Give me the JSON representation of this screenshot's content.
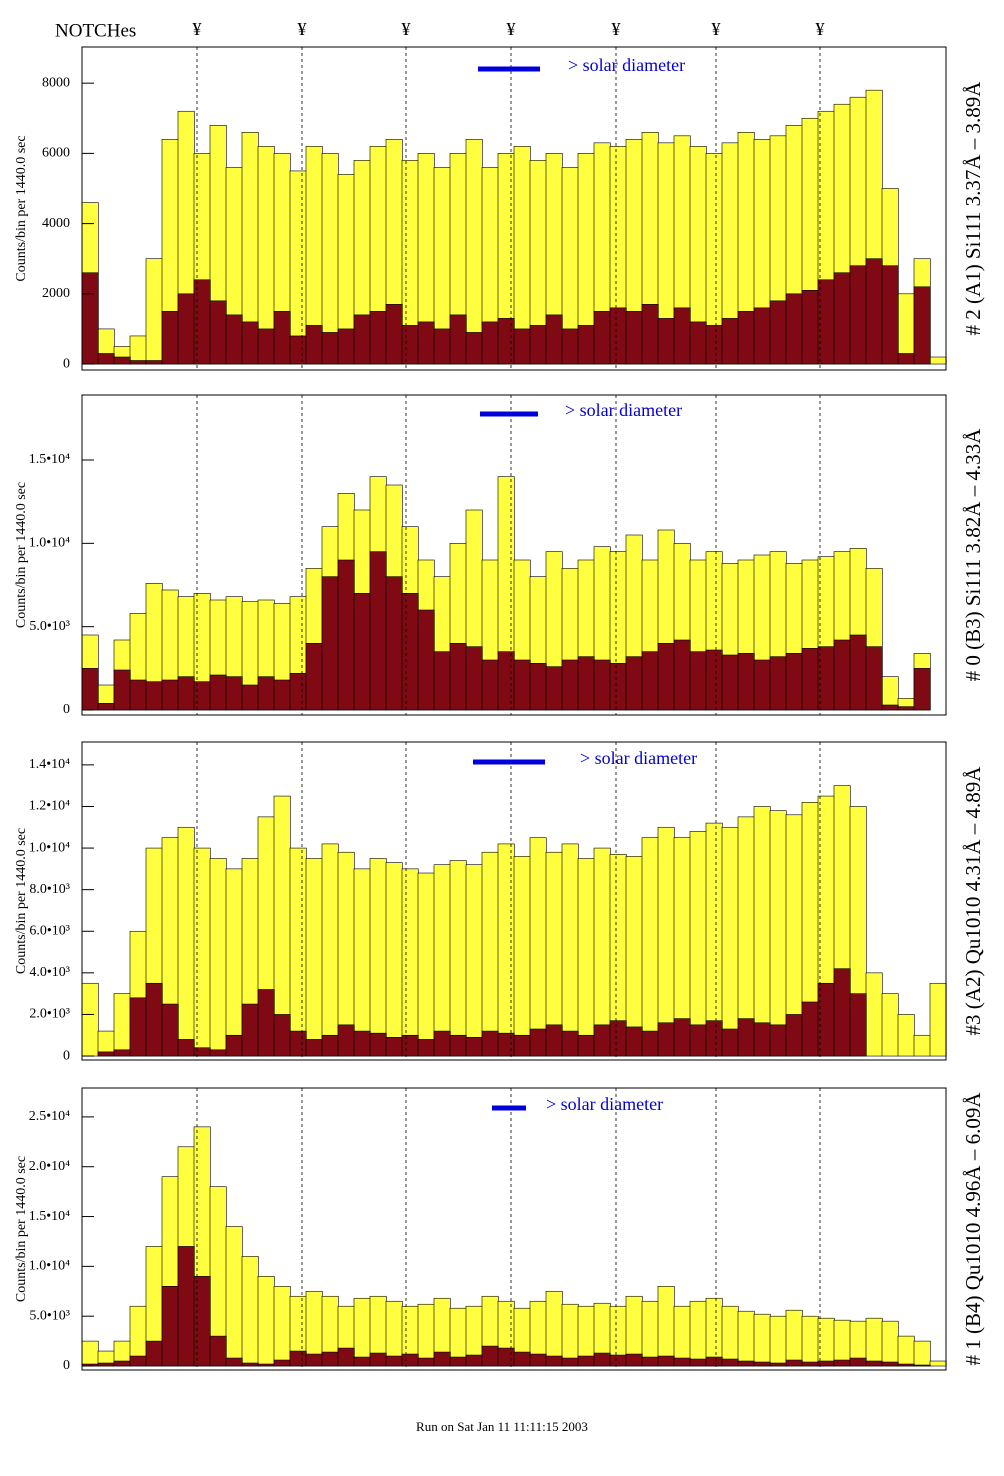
{
  "header": {
    "label": "NOTCHes",
    "markers": [
      "¥",
      "¥",
      "¥",
      "¥",
      "¥",
      "¥",
      "¥"
    ]
  },
  "footer": "Run on Sat Jan 11 11:11:15 2003",
  "chart_data": [
    {
      "type": "bar",
      "title": "# 2 (A1) Si111  3.37Å – 3.89Å",
      "y_label": "Counts/bin per  1440.0 sec",
      "annotation": "> solar diameter",
      "ylim": [
        -170,
        9030
      ],
      "yticks": [
        0,
        2000,
        4000,
        6000,
        8000
      ],
      "series": [
        {
          "color": "#ffff40",
          "values": [
            4600,
            1000,
            500,
            800,
            3000,
            6400,
            7200,
            6000,
            6800,
            5600,
            6600,
            6200,
            6000,
            5500,
            6200,
            6000,
            5400,
            5800,
            6200,
            6400,
            5800,
            6000,
            5600,
            6000,
            6400,
            5600,
            6000,
            6200,
            5800,
            6000,
            5600,
            6000,
            6300,
            6200,
            6400,
            6600,
            6300,
            6500,
            6200,
            6000,
            6300,
            6600,
            6400,
            6500,
            6800,
            7000,
            7200,
            7400,
            7600,
            7800,
            5000,
            2000,
            3000,
            200
          ]
        },
        {
          "color": "#7f0a14",
          "values": [
            2600,
            300,
            200,
            100,
            100,
            1500,
            2000,
            2400,
            1800,
            1400,
            1200,
            1000,
            1500,
            800,
            1100,
            900,
            1000,
            1400,
            1500,
            1700,
            1100,
            1200,
            1000,
            1400,
            900,
            1200,
            1300,
            1000,
            1100,
            1400,
            1000,
            1100,
            1500,
            1600,
            1500,
            1700,
            1300,
            1600,
            1200,
            1100,
            1300,
            1500,
            1600,
            1800,
            2000,
            2100,
            2400,
            2600,
            2800,
            3000,
            2800,
            300,
            2200,
            0
          ]
        }
      ]
    },
    {
      "type": "bar",
      "title": "# 0 (B3) Si111  3.82Å – 4.33Å",
      "y_label": "Counts/bin per  1440.0 sec",
      "annotation": "> solar diameter",
      "ylim": [
        -300,
        18900
      ],
      "yticks": [
        0,
        {
          "value": 5000,
          "label": "5.0•10³"
        },
        {
          "value": 10000,
          "label": "1.0•10⁴"
        },
        {
          "value": 15000,
          "label": "1.5•10⁴"
        }
      ],
      "series": [
        {
          "color": "#ffff40",
          "values": [
            4500,
            1500,
            4200,
            5800,
            7600,
            7200,
            6800,
            7000,
            6600,
            6800,
            6500,
            6600,
            6400,
            6800,
            8500,
            11000,
            13000,
            12000,
            14000,
            13500,
            11000,
            9000,
            8000,
            10000,
            12000,
            9000,
            14000,
            9000,
            8000,
            9500,
            8500,
            9000,
            9800,
            9500,
            10500,
            9000,
            10800,
            10000,
            9000,
            9500,
            8800,
            9000,
            9300,
            9500,
            8800,
            9000,
            9200,
            9500,
            9700,
            8500,
            2000,
            700,
            3400,
            0
          ]
        },
        {
          "color": "#7f0a14",
          "values": [
            2500,
            400,
            2400,
            1800,
            1700,
            1800,
            2000,
            1700,
            2100,
            2000,
            1500,
            2000,
            1800,
            2200,
            4000,
            8000,
            9000,
            7000,
            9500,
            8000,
            7000,
            6000,
            3500,
            4000,
            3800,
            3000,
            3500,
            3000,
            2800,
            2600,
            3000,
            3200,
            3000,
            2800,
            3200,
            3500,
            4000,
            4200,
            3500,
            3600,
            3300,
            3400,
            3000,
            3200,
            3400,
            3700,
            3800,
            4200,
            4500,
            3800,
            300,
            200,
            2500,
            0
          ]
        }
      ]
    },
    {
      "type": "bar",
      "title": "#3 (A2) Qu1010  4.31Å – 4.89Å",
      "y_label": "Counts/bin per  1440.0 sec",
      "annotation": "> solar diameter",
      "ylim": [
        -190,
        15100
      ],
      "yticks": [
        0,
        {
          "value": 2000,
          "label": "2.0•10³"
        },
        {
          "value": 4000,
          "label": "4.0•10³"
        },
        {
          "value": 6000,
          "label": "6.0•10³"
        },
        {
          "value": 8000,
          "label": "8.0•10³"
        },
        {
          "value": 10000,
          "label": "1.0•10⁴"
        },
        {
          "value": 12000,
          "label": "1.2•10⁴"
        },
        {
          "value": 14000,
          "label": "1.4•10⁴"
        }
      ],
      "series": [
        {
          "color": "#ffff40",
          "values": [
            3500,
            1200,
            3000,
            6000,
            10000,
            10500,
            11000,
            10000,
            9500,
            9000,
            9500,
            11500,
            12500,
            10000,
            9500,
            10200,
            9800,
            9000,
            9500,
            9300,
            9000,
            8800,
            9200,
            9400,
            9200,
            9800,
            10200,
            9600,
            10500,
            9800,
            10200,
            9500,
            10000,
            9700,
            9600,
            10500,
            11000,
            10500,
            10800,
            11200,
            11000,
            11500,
            12000,
            11800,
            11600,
            12200,
            12500,
            13000,
            12000,
            4000,
            3000,
            2000,
            1000,
            3500
          ]
        },
        {
          "color": "#7f0a14",
          "values": [
            0,
            200,
            300,
            2800,
            3500,
            2500,
            800,
            400,
            300,
            1000,
            2500,
            3200,
            2000,
            1200,
            800,
            1000,
            1500,
            1200,
            1100,
            900,
            1000,
            800,
            1200,
            1000,
            900,
            1200,
            1100,
            1000,
            1300,
            1500,
            1200,
            1000,
            1500,
            1700,
            1400,
            1200,
            1600,
            1800,
            1500,
            1700,
            1300,
            1800,
            1600,
            1500,
            2000,
            2600,
            3500,
            4200,
            3000,
            0,
            0,
            0,
            0,
            0
          ]
        }
      ]
    },
    {
      "type": "bar",
      "title": "# 1 (B4) Qu1010 4.96Å – 6.09Å",
      "y_label": "Counts/bin per  1440.0 sec",
      "annotation": "> solar diameter",
      "ylim": [
        -400,
        27900
      ],
      "yticks": [
        0,
        {
          "value": 5000,
          "label": "5.0•10³"
        },
        {
          "value": 10000,
          "label": "1.0•10⁴"
        },
        {
          "value": 15000,
          "label": "1.5•10⁴"
        },
        {
          "value": 20000,
          "label": "2.0•10⁴"
        },
        {
          "value": 25000,
          "label": "2.5•10⁴"
        }
      ],
      "series": [
        {
          "color": "#ffff40",
          "values": [
            2500,
            1500,
            2500,
            6000,
            12000,
            19000,
            22000,
            24000,
            18000,
            14000,
            11000,
            9000,
            8000,
            7000,
            7500,
            7000,
            6000,
            6800,
            7000,
            6500,
            6000,
            6200,
            6800,
            5800,
            6000,
            7000,
            6500,
            5800,
            6500,
            7500,
            6200,
            6000,
            6300,
            6000,
            7000,
            6500,
            8000,
            6000,
            6500,
            6800,
            6000,
            5500,
            5200,
            5000,
            5600,
            5000,
            4800,
            4600,
            4500,
            4800,
            4500,
            3000,
            2500,
            500
          ]
        },
        {
          "color": "#7f0a14",
          "values": [
            200,
            300,
            500,
            1000,
            2500,
            8000,
            12000,
            9000,
            3000,
            800,
            300,
            200,
            600,
            1500,
            1200,
            1400,
            1800,
            900,
            1300,
            1000,
            1200,
            800,
            1400,
            900,
            1100,
            2000,
            1800,
            1400,
            1200,
            1000,
            800,
            1000,
            1300,
            1100,
            1200,
            900,
            1000,
            800,
            700,
            900,
            700,
            500,
            400,
            300,
            600,
            400,
            500,
            600,
            800,
            500,
            400,
            200,
            100,
            0
          ]
        }
      ]
    }
  ]
}
